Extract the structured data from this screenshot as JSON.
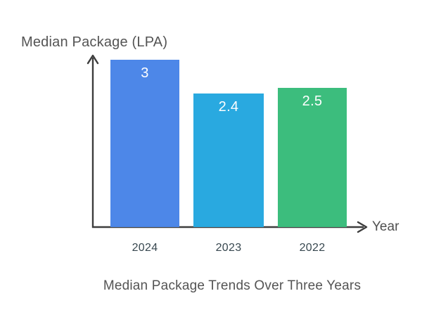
{
  "chart_data": {
    "type": "bar",
    "title": "Median Package Trends Over Three Years",
    "xlabel": "Year",
    "ylabel": "Median Package (LPA)",
    "categories": [
      "2024",
      "2023",
      "2022"
    ],
    "values": [
      3,
      2.4,
      2.5
    ],
    "value_labels": [
      "3",
      "2.4",
      "2.5"
    ],
    "series": [
      {
        "name": "Median Package (LPA)",
        "values": [
          3,
          2.4,
          2.5
        ]
      }
    ],
    "bar_colors": [
      "#4d87e8",
      "#29a9e0",
      "#3cbd7d"
    ],
    "ylim": [
      0,
      3
    ],
    "grid": false,
    "legend_position": "none",
    "axis_color": "#3d3d3d",
    "value_label_color": "#ffffff",
    "tick_label_color": "#37474f",
    "axis_title_color": "#545454",
    "background_color": "#ffffff"
  }
}
